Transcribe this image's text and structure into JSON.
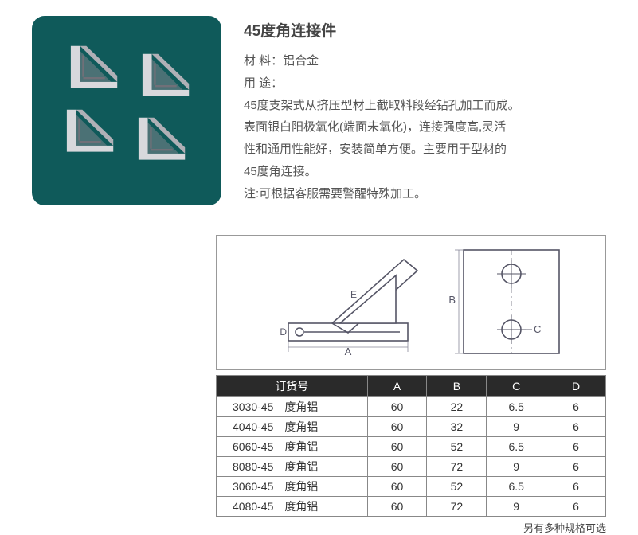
{
  "title": "45度角连接件",
  "material_label": "材 料：铝合金",
  "usage_label": "用 途：",
  "desc_lines": [
    "45度支架式从挤压型材上截取料段经钻孔加工而成。",
    "表面银白阳极氧化(端面未氧化)，连接强度高,灵活",
    "性和通用性能好，安装简单方便。主要用于型材的",
    "45度角连接。",
    "注:可根据客服需要警醒特殊加工。"
  ],
  "diagram_labels": {
    "A": "A",
    "B": "B",
    "C": "C",
    "D": "D",
    "E": "E"
  },
  "table": {
    "headers": {
      "order": "订货号",
      "A": "A",
      "B": "B",
      "C": "C",
      "D": "D"
    },
    "rows": [
      {
        "order": "3030-45　度角铝",
        "A": "60",
        "B": "22",
        "C": "6.5",
        "D": "6"
      },
      {
        "order": "4040-45　度角铝",
        "A": "60",
        "B": "32",
        "C": "9",
        "D": "6"
      },
      {
        "order": "6060-45　度角铝",
        "A": "60",
        "B": "52",
        "C": "6.5",
        "D": "6"
      },
      {
        "order": "8080-45　度角铝",
        "A": "60",
        "B": "72",
        "C": "9",
        "D": "6"
      },
      {
        "order": "3060-45　度角铝",
        "A": "60",
        "B": "52",
        "C": "6.5",
        "D": "6"
      },
      {
        "order": "4080-45　度角铝",
        "A": "60",
        "B": "72",
        "C": "9",
        "D": "6"
      }
    ]
  },
  "footnote": "另有多种规格可选",
  "colors": {
    "photo_bg": "#0f5a5a",
    "bracket_light": "#e8e8ea",
    "bracket_mid": "#b8b8be",
    "bracket_dark": "#6e6e76",
    "table_header_bg": "#2a2a2a"
  }
}
